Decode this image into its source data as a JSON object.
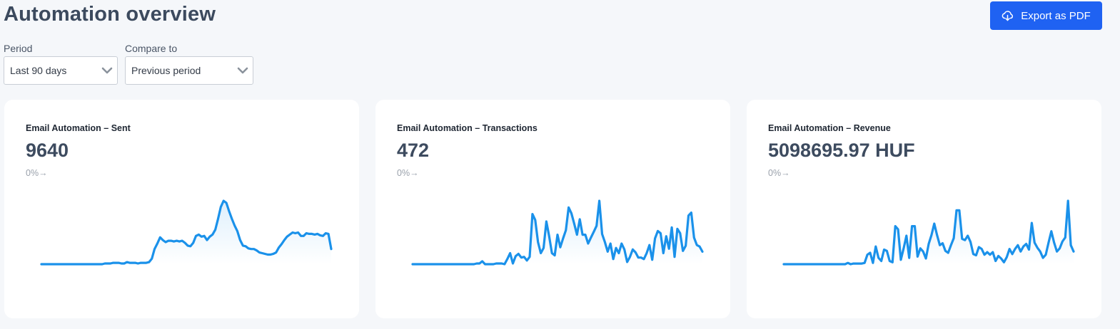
{
  "header": {
    "title": "Automation overview",
    "export_label": "Export as PDF"
  },
  "filters": {
    "period_label": "Period",
    "period_value": "Last 90 days",
    "compare_label": "Compare to",
    "compare_value": "Previous period"
  },
  "colors": {
    "accent": "#1f62f2",
    "line": "#1a91ea"
  },
  "icons": {
    "export": "cloud-download-icon",
    "dropdown": "chevron-down-icon",
    "change_arrow": "arrow-right-icon"
  },
  "cards": [
    {
      "title": "Email Automation – Sent",
      "value": "9640",
      "change": "0%→"
    },
    {
      "title": "Email Automation – Transactions",
      "value": "472",
      "change": "0%→"
    },
    {
      "title": "Email Automation – Revenue",
      "value": "5098695.97 HUF",
      "change": "0%→"
    }
  ],
  "chart_data": [
    {
      "type": "line",
      "title": "Email Automation – Sent",
      "series": [
        {
          "values": [
            0,
            0,
            0,
            0,
            0,
            0,
            0,
            0,
            0,
            0,
            0,
            0,
            0,
            0,
            0,
            0,
            0,
            0,
            0,
            0,
            0,
            0,
            0,
            1,
            1,
            1,
            2,
            2,
            2,
            1,
            1,
            3,
            2,
            2,
            2,
            1,
            2,
            2,
            2,
            3,
            8,
            22,
            30,
            39,
            35,
            32,
            34,
            34,
            33,
            34,
            33,
            34,
            31,
            27,
            26,
            31,
            41,
            43,
            40,
            41,
            35,
            40,
            43,
            50,
            66,
            83,
            92,
            89,
            77,
            66,
            56,
            48,
            35,
            27,
            26,
            23,
            22,
            22,
            20,
            17,
            16,
            15,
            14,
            14,
            15,
            17,
            24,
            29,
            35,
            40,
            43,
            46,
            45,
            46,
            41,
            41,
            45,
            44,
            44,
            43,
            44,
            42,
            41,
            45,
            44,
            22
          ]
        }
      ]
    },
    {
      "type": "line",
      "title": "Email Automation – Transactions",
      "series": [
        {
          "values": [
            0,
            0,
            0,
            0,
            0,
            0,
            0,
            0,
            0,
            0,
            0,
            0,
            0,
            0,
            0,
            0,
            0,
            0,
            0,
            0,
            0,
            0,
            0,
            1,
            1,
            4,
            0,
            0,
            0,
            0,
            1,
            1,
            1,
            0,
            7,
            15,
            1,
            11,
            14,
            9,
            10,
            5,
            10,
            68,
            60,
            30,
            15,
            22,
            58,
            38,
            15,
            12,
            40,
            23,
            35,
            46,
            77,
            69,
            55,
            40,
            61,
            40,
            40,
            28,
            36,
            44,
            52,
            86,
            41,
            30,
            17,
            28,
            7,
            22,
            15,
            28,
            20,
            3,
            10,
            20,
            16,
            9,
            9,
            7,
            15,
            26,
            6,
            35,
            45,
            42,
            15,
            38,
            21,
            50,
            10,
            48,
            42,
            18,
            25,
            66,
            70,
            36,
            26,
            24,
            17
          ]
        }
      ]
    },
    {
      "type": "line",
      "title": "Email Automation – Revenue",
      "series": [
        {
          "values": [
            0,
            0,
            0,
            0,
            0,
            0,
            0,
            0,
            0,
            0,
            0,
            0,
            0,
            0,
            0,
            0,
            0,
            0,
            0,
            0,
            0,
            0,
            0,
            2,
            0,
            1,
            1,
            1,
            1,
            2,
            15,
            18,
            2,
            28,
            10,
            5,
            23,
            21,
            5,
            3,
            60,
            55,
            7,
            25,
            45,
            10,
            60,
            60,
            12,
            25,
            20,
            9,
            32,
            46,
            64,
            46,
            30,
            33,
            21,
            18,
            30,
            41,
            85,
            85,
            40,
            38,
            45,
            35,
            16,
            14,
            27,
            24,
            15,
            19,
            15,
            19,
            5,
            13,
            9,
            3,
            11,
            24,
            16,
            24,
            30,
            20,
            28,
            32,
            23,
            65,
            34,
            26,
            20,
            10,
            15,
            34,
            52,
            34,
            20,
            25,
            36,
            42,
            100,
            30,
            20
          ]
        }
      ]
    }
  ]
}
